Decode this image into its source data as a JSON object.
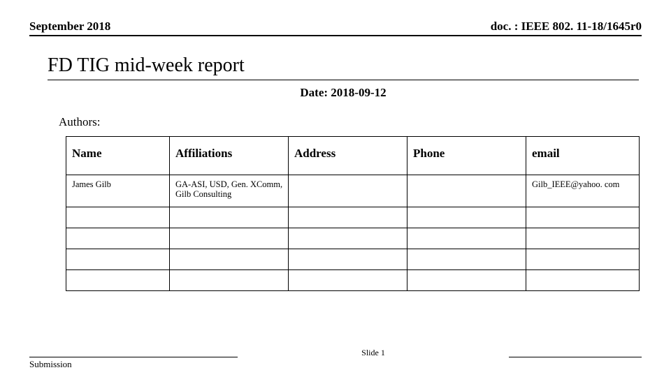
{
  "header": {
    "left": "September  2018",
    "right": "doc. : IEEE 802. 11-18/1645r0"
  },
  "title": "FD TIG mid-week report",
  "date_label": "Date: 2018-09-12",
  "authors_label": "Authors:",
  "table": {
    "columns": [
      "Name",
      "Affiliations",
      "Address",
      "Phone",
      "email"
    ],
    "rows": [
      [
        "James Gilb",
        "GA-ASI, USD, Gen. XComm, Gilb Consulting",
        "",
        "",
        "Gilb_IEEE@yahoo. com"
      ],
      [
        "",
        "",
        "",
        "",
        ""
      ],
      [
        "",
        "",
        "",
        "",
        ""
      ],
      [
        "",
        "",
        "",
        "",
        ""
      ],
      [
        "",
        "",
        "",
        "",
        ""
      ]
    ]
  },
  "footer": {
    "left": "Submission",
    "center": "Slide 1",
    "right": ""
  },
  "colors": {
    "background": "#ffffff",
    "text": "#000000",
    "rule": "#000000"
  }
}
